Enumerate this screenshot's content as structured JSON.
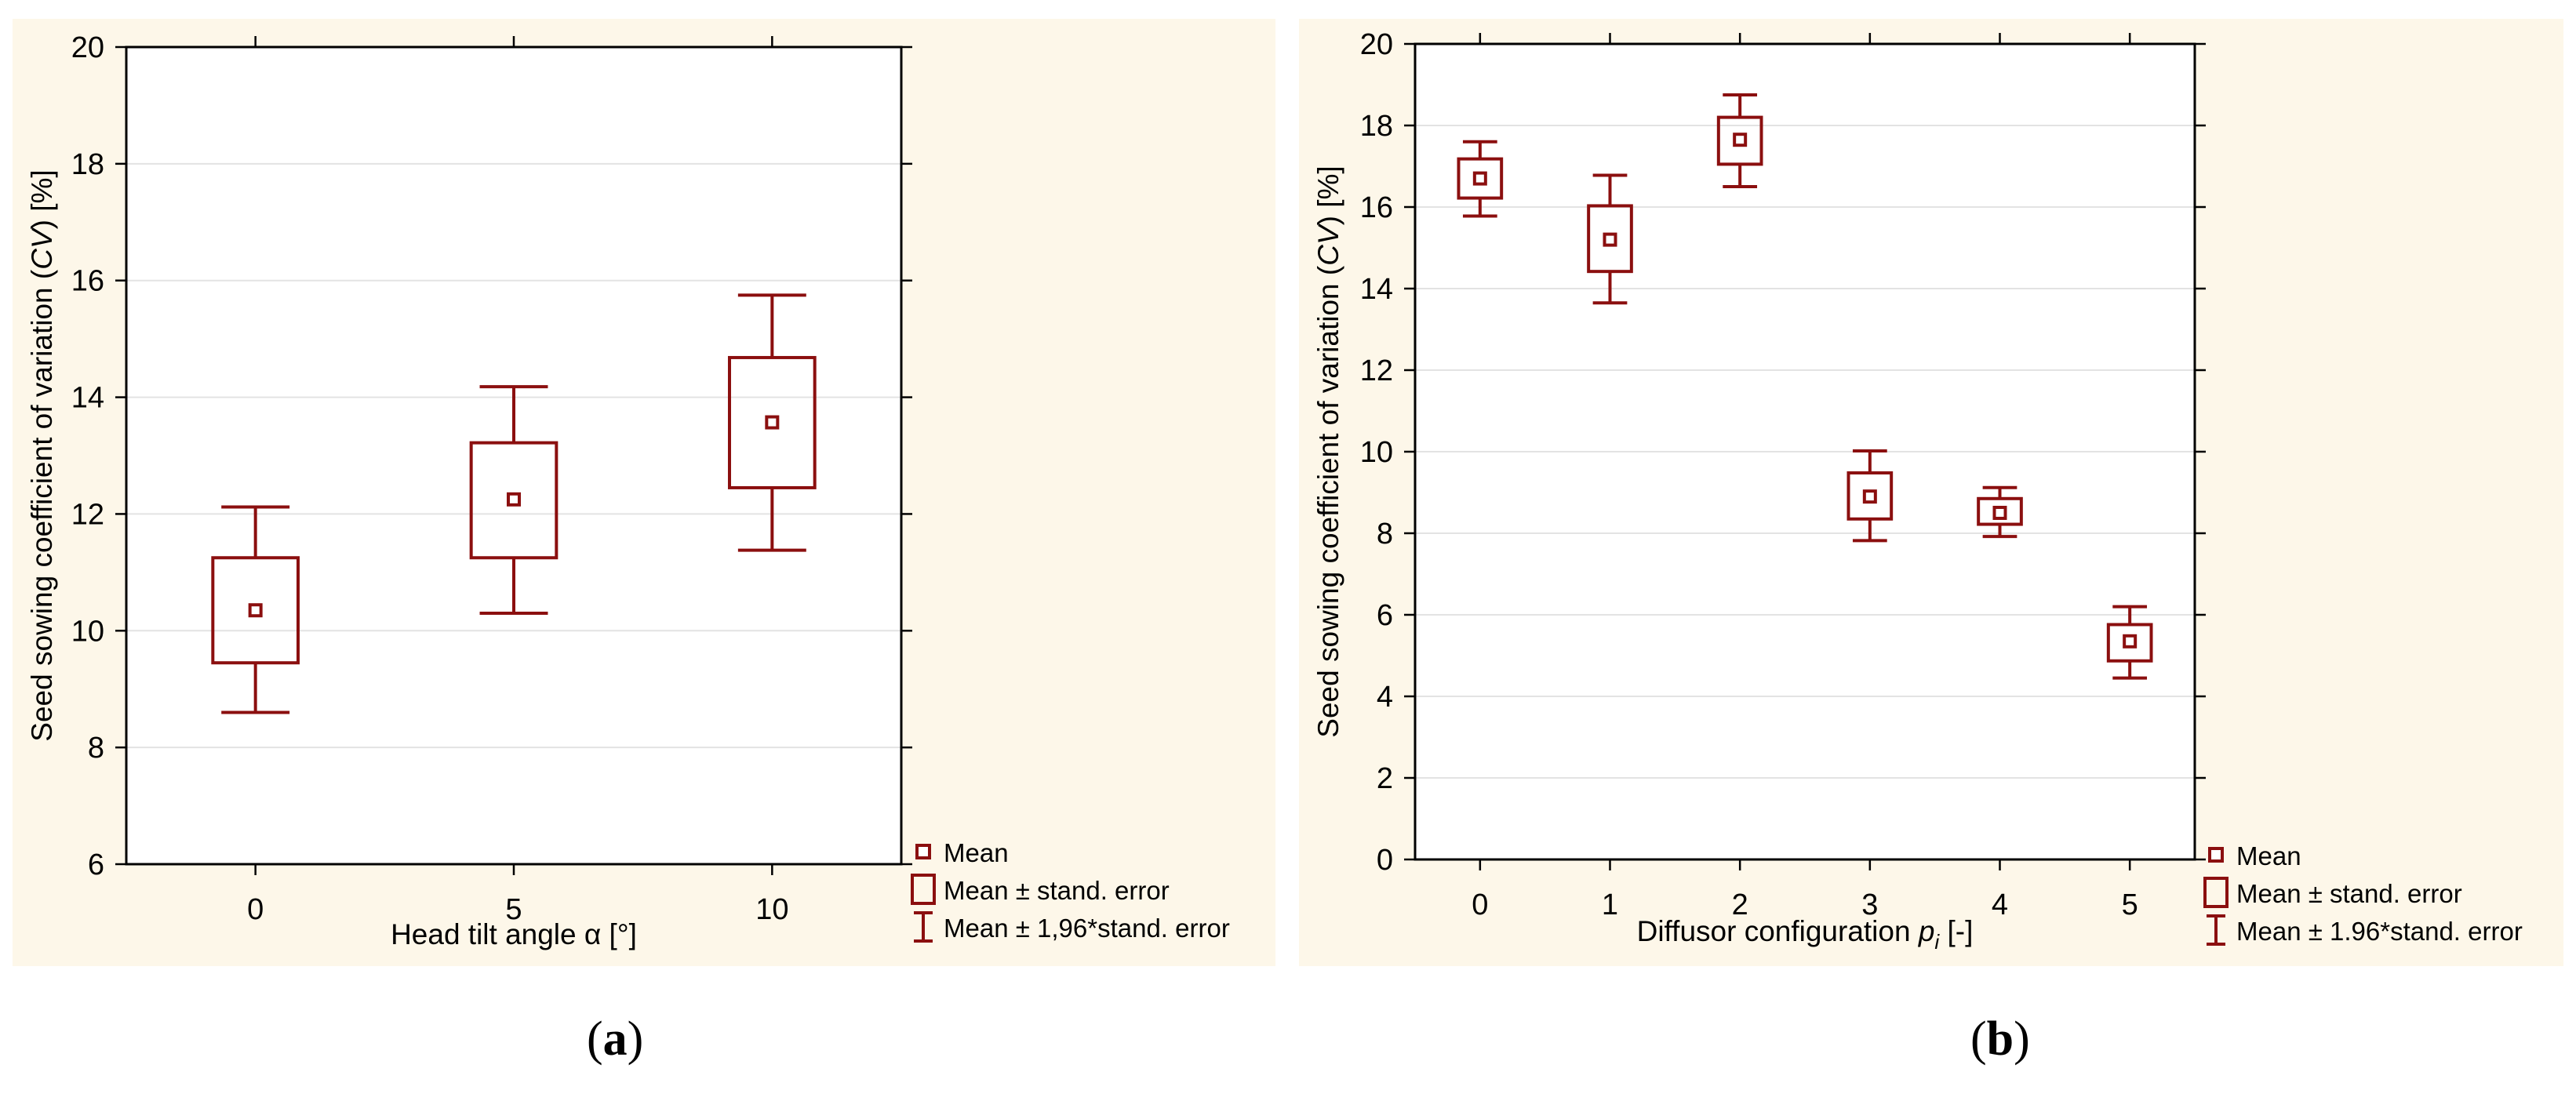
{
  "chart_data": [
    {
      "type": "box",
      "panel": "a",
      "xlabel_pre": "Head tilt angle ",
      "xlabel_sym": "α",
      "xlabel_post": " [°]",
      "ylabel_pre": "Seed sowing coefficient of variation (",
      "ylabel_it": "CV",
      "ylabel_post": ")  [%]",
      "ylim": [
        6,
        20
      ],
      "yticks": [
        "6",
        "8",
        "10",
        "12",
        "14",
        "16",
        "18",
        "20"
      ],
      "categories": [
        "0",
        "5",
        "10"
      ],
      "series": [
        {
          "name": "Mean",
          "values": [
            10.35,
            12.25,
            13.57
          ]
        },
        {
          "name": "Mean ± stand. error",
          "low": [
            9.45,
            11.25,
            12.45
          ],
          "high": [
            11.25,
            13.22,
            14.68
          ]
        },
        {
          "name": "Mean ± 1,96*stand. error",
          "low": [
            8.6,
            10.3,
            11.38
          ],
          "high": [
            12.12,
            14.18,
            15.75
          ]
        }
      ],
      "legend": [
        "Mean",
        "Mean ± stand. error",
        "Mean ± 1,96*stand. error"
      ],
      "color": "#8b0f0f",
      "caption": "a"
    },
    {
      "type": "box",
      "panel": "b",
      "xlabel_pre": "Diffusor configuration ",
      "xlabel_sym": "p",
      "xlabel_sub": "i",
      "xlabel_post": " [-]",
      "ylabel_pre": "Seed sowing coefficient of variation (",
      "ylabel_it": "CV",
      "ylabel_post": ")  [%]",
      "ylim": [
        0,
        20
      ],
      "yticks": [
        "0",
        "2",
        "4",
        "6",
        "8",
        "10",
        "12",
        "14",
        "16",
        "18",
        "20"
      ],
      "categories": [
        "0",
        "1",
        "2",
        "3",
        "4",
        "5"
      ],
      "series": [
        {
          "name": "Mean",
          "values": [
            16.7,
            15.2,
            17.65,
            8.9,
            8.5,
            5.35
          ]
        },
        {
          "name": "Mean ± stand. error",
          "low": [
            16.22,
            14.42,
            17.05,
            8.35,
            8.22,
            4.87
          ],
          "high": [
            17.18,
            16.03,
            18.2,
            9.48,
            8.85,
            5.76
          ]
        },
        {
          "name": "Mean ± 1.96*stand. error",
          "low": [
            15.78,
            13.65,
            16.5,
            7.82,
            7.92,
            4.45
          ],
          "high": [
            17.6,
            16.78,
            18.75,
            10.02,
            9.12,
            6.2
          ]
        }
      ],
      "legend": [
        "Mean",
        "Mean ± stand. error",
        "Mean ± 1.96*stand. error"
      ],
      "color": "#8b0f0f",
      "caption": "b"
    }
  ]
}
